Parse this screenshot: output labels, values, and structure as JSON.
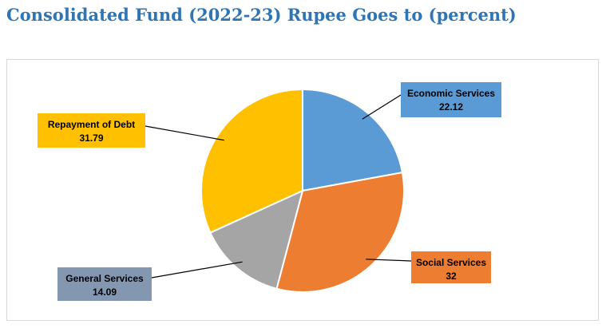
{
  "title": "Consolidated Fund (2022-23) Rupee Goes to (percent)",
  "chart_data": {
    "type": "pie",
    "slices": [
      {
        "label": "Economic Services",
        "value": 22.12,
        "value_label": "22.12",
        "color": "#5b9bd5",
        "label_color": "#5b9bd5"
      },
      {
        "label": "Social Services",
        "value": 32,
        "value_label": "32",
        "color": "#ed7d31",
        "label_color": "#ed7d31"
      },
      {
        "label": "General Services",
        "value": 14.09,
        "value_label": "14.09",
        "color": "#a5a5a5",
        "label_color": "#8497b0"
      },
      {
        "label": "Repayment of Debt",
        "value": 31.79,
        "value_label": "31.79",
        "color": "#ffc000",
        "label_color": "#ffc000"
      }
    ],
    "start_angle_deg": 0,
    "direction": "clockwise"
  }
}
